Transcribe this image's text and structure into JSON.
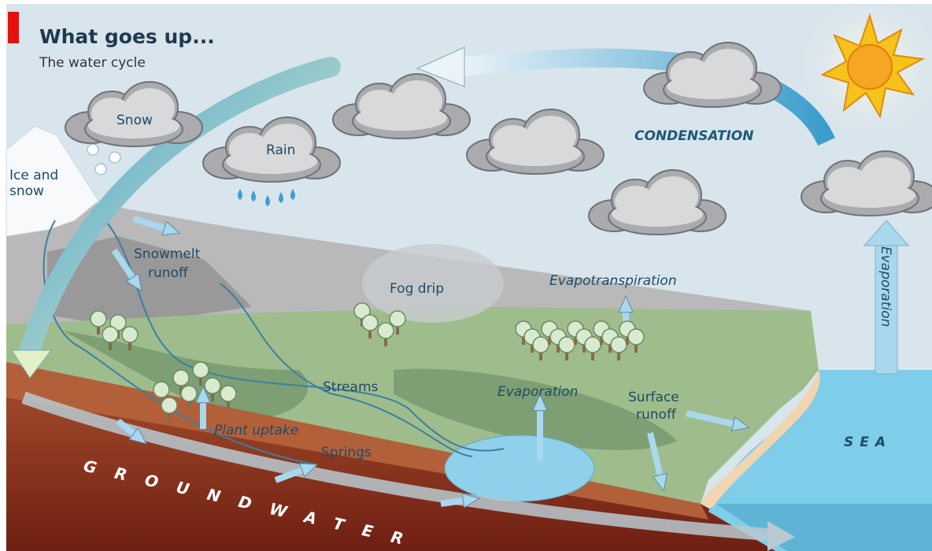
{
  "header": {
    "title": "What goes up...",
    "subtitle": "The water cycle"
  },
  "labels": {
    "snow": "Snow",
    "rain": "Rain",
    "ice_and_snow": [
      "Ice and",
      "snow"
    ],
    "snowmelt_runoff": [
      "Snowmelt",
      "runoff"
    ],
    "fog_drip": "Fog drip",
    "evapotranspiration": "Evapotranspiration",
    "condensation": "CONDENSATION",
    "evaporation_sea": "Evaporation",
    "streams": "Streams",
    "evaporation_lake": "Evaporation",
    "surface_runoff": [
      "Surface",
      "runoff"
    ],
    "plant_uptake": "Plant uptake",
    "springs": "Springs",
    "sea": "SEA",
    "groundwater": "GROUNDWATER"
  }
}
